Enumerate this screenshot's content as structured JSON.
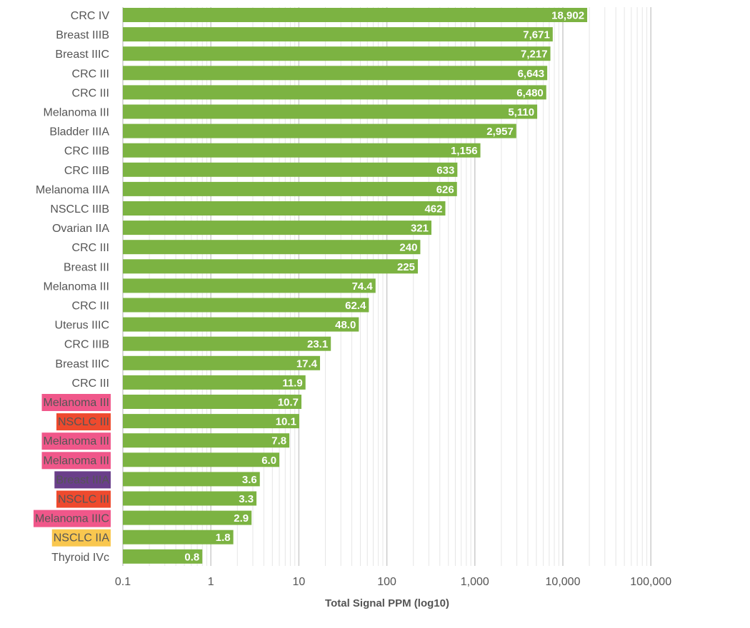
{
  "chart_data": {
    "type": "bar",
    "orientation": "horizontal",
    "xscale": "log10",
    "xlim": [
      0.1,
      100000
    ],
    "grid": true,
    "xlabel": "Total Signal PPM (log10)",
    "ylabel": "",
    "title": "",
    "bar_color": "#7cb342",
    "x_ticks": [
      "0.1",
      "1",
      "10",
      "100",
      "1,000",
      "10,000",
      "100,000"
    ],
    "x_tick_values": [
      0.1,
      1,
      10,
      100,
      1000,
      10000,
      100000
    ],
    "categories": [
      "CRC IV",
      "Breast IIIB",
      "Breast IIIC",
      "CRC III",
      "CRC III",
      "Melanoma III",
      "Bladder IIIA",
      "CRC IIIB",
      "CRC IIIB",
      "Melanoma IIIA",
      "NSCLC IIIB",
      "Ovarian IIA",
      "CRC III",
      "Breast III",
      "Melanoma III",
      "CRC III",
      "Uterus IIIC",
      "CRC IIIB",
      "Breast IIIC",
      "CRC III",
      "Melanoma III",
      "NSCLC III",
      "Melanoma III",
      "Melanoma III",
      "Breast IIIA",
      "NSCLC III",
      "Melanoma IIIC",
      "NSCLC IIA",
      "Thyroid IVc"
    ],
    "values": [
      18902,
      7671,
      7217,
      6643,
      6480,
      5110,
      2957,
      1156,
      633,
      626,
      462,
      321,
      240,
      225,
      74.4,
      62.4,
      48.0,
      23.1,
      17.4,
      11.9,
      10.7,
      10.1,
      7.8,
      6.0,
      3.6,
      3.3,
      2.9,
      1.8,
      0.8
    ],
    "value_labels": [
      "18,902",
      "7,671",
      "7,217",
      "6,643",
      "6,480",
      "5,110",
      "2,957",
      "1,156",
      "633",
      "626",
      "462",
      "321",
      "240",
      "225",
      "74.4",
      "62.4",
      "48.0",
      "23.1",
      "17.4",
      "11.9",
      "10.7",
      "10.1",
      "7.8",
      "6.0",
      "3.6",
      "3.3",
      "2.9",
      "1.8",
      "0.8"
    ],
    "label_highlights": [
      null,
      null,
      null,
      null,
      null,
      null,
      null,
      null,
      null,
      null,
      null,
      null,
      null,
      null,
      null,
      null,
      null,
      null,
      null,
      null,
      "#f0578a",
      "#ee4a2e",
      "#f0578a",
      "#f0578a",
      "#6a3f8a",
      "#ee4a2e",
      "#f0578a",
      "#f9c74f",
      null
    ]
  }
}
